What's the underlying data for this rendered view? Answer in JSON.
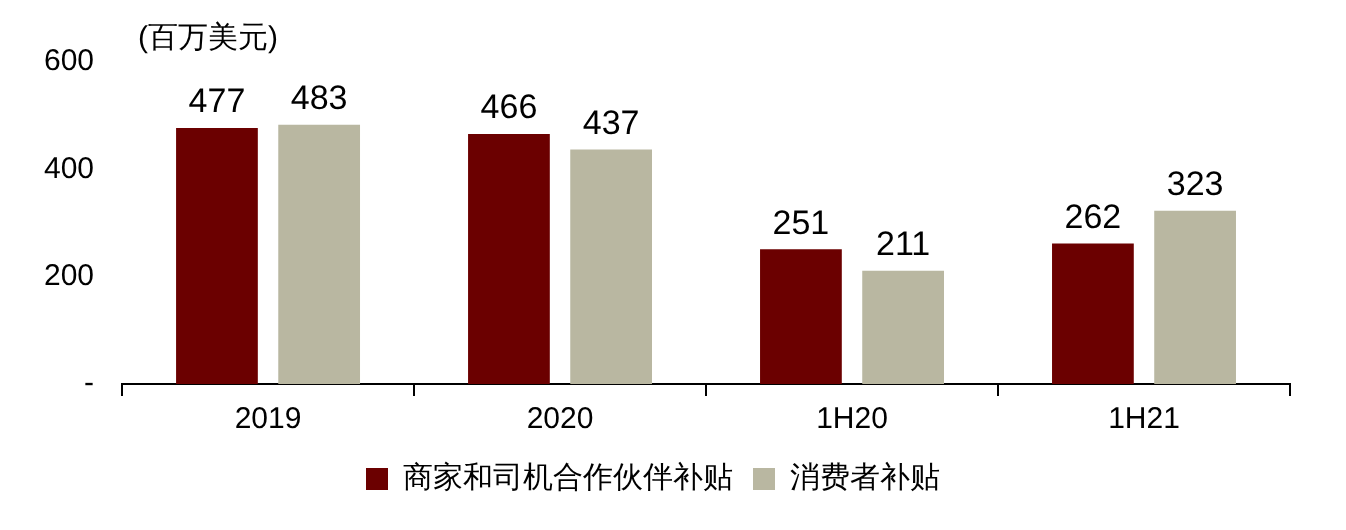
{
  "chart_data": {
    "type": "bar",
    "categories": [
      "2019",
      "2020",
      "1H20",
      "1H21"
    ],
    "series": [
      {
        "name": "商家和司机合作伙伴补贴",
        "color": "#6b0000",
        "values": [
          477,
          466,
          251,
          262
        ]
      },
      {
        "name": "消费者补贴",
        "color": "#b9b7a1",
        "values": [
          483,
          437,
          211,
          323
        ]
      }
    ],
    "ylim": [
      0,
      600
    ],
    "yticks": [
      {
        "value": 0,
        "label": "-"
      },
      200,
      400,
      600
    ],
    "annotations": [
      "(百万美元)"
    ],
    "data_labels": true,
    "legend": "bottom",
    "grid": false
  }
}
